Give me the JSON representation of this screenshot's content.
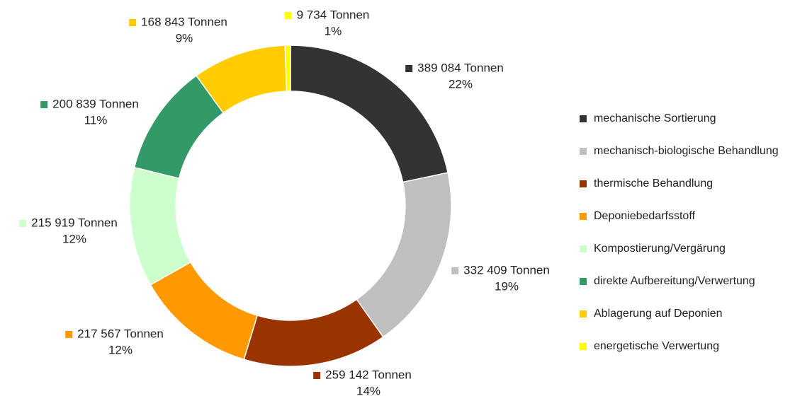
{
  "chart_data": {
    "type": "donut",
    "categories": [
      "mechanische Sortierung",
      "mechanisch-biologische Behandlung",
      "thermische Behandlung",
      "Deponiebedarfsstoff",
      "Kompostierung/Vergärung",
      "direkte Aufbereitung/Verwertung",
      "Ablagerung auf Deponien",
      "energetische Verwertung"
    ],
    "values": [
      389084,
      332409,
      259142,
      217567,
      215919,
      200839,
      168843,
      9734
    ],
    "value_labels": [
      "389 084 Tonnen",
      "332 409 Tonnen",
      "259 142 Tonnen",
      "217 567 Tonnen",
      "215 919 Tonnen",
      "200 839 Tonnen",
      "168 843 Tonnen",
      "9 734 Tonnen"
    ],
    "percent_labels": [
      "22%",
      "19%",
      "14%",
      "12%",
      "12%",
      "11%",
      "9%",
      "1%"
    ],
    "colors": [
      "#333333",
      "#bfbfbf",
      "#993300",
      "#ff9900",
      "#ccffcc",
      "#339966",
      "#ffcc00",
      "#ffff00"
    ],
    "legend": "right"
  }
}
